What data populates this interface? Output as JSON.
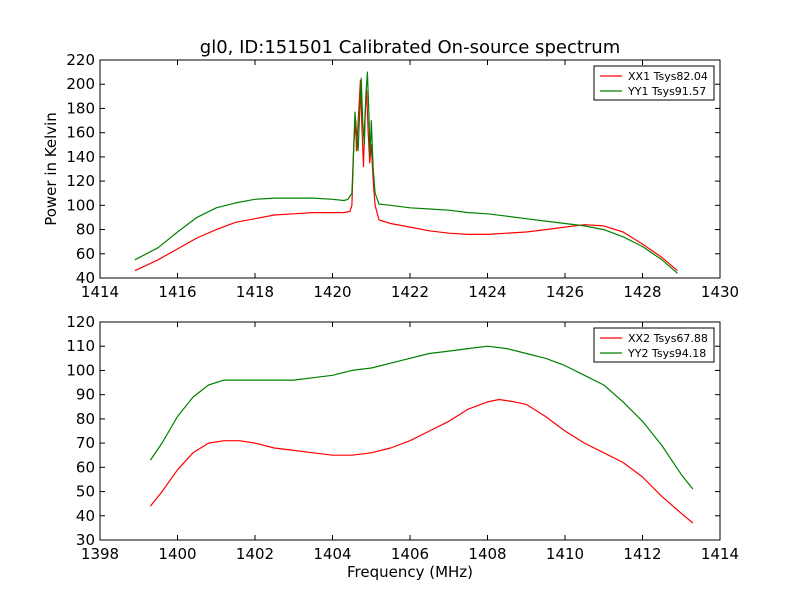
{
  "chart_data": [
    {
      "type": "line",
      "title": "gl0, ID:151501 Calibrated On-source spectrum",
      "xlabel": "",
      "ylabel": "Power in Kelvin",
      "xlim": [
        1414,
        1430
      ],
      "ylim": [
        40,
        220
      ],
      "xticks": [
        1414,
        1416,
        1418,
        1420,
        1422,
        1424,
        1426,
        1428,
        1430
      ],
      "yticks": [
        40,
        60,
        80,
        100,
        120,
        140,
        160,
        180,
        200,
        220
      ],
      "legend_position": "top-right",
      "series": [
        {
          "name": "XX1 Tsys82.04",
          "color": "#ff0000",
          "points": [
            [
              1414.9,
              46
            ],
            [
              1415.5,
              55
            ],
            [
              1416,
              64
            ],
            [
              1416.5,
              73
            ],
            [
              1417,
              80
            ],
            [
              1417.5,
              86
            ],
            [
              1418,
              89
            ],
            [
              1418.5,
              92
            ],
            [
              1419,
              93
            ],
            [
              1419.5,
              94
            ],
            [
              1420,
              94
            ],
            [
              1420.3,
              94
            ],
            [
              1420.45,
              95
            ],
            [
              1420.5,
              100
            ],
            [
              1420.55,
              150
            ],
            [
              1420.6,
              170
            ],
            [
              1420.62,
              145
            ],
            [
              1420.68,
              180
            ],
            [
              1420.72,
              203
            ],
            [
              1420.76,
              165
            ],
            [
              1420.8,
              132
            ],
            [
              1420.84,
              175
            ],
            [
              1420.88,
              195
            ],
            [
              1420.92,
              160
            ],
            [
              1420.96,
              135
            ],
            [
              1421,
              150
            ],
            [
              1421.05,
              120
            ],
            [
              1421.1,
              100
            ],
            [
              1421.2,
              88
            ],
            [
              1421.5,
              85
            ],
            [
              1422,
              82
            ],
            [
              1422.5,
              79
            ],
            [
              1423,
              77
            ],
            [
              1423.5,
              76
            ],
            [
              1424,
              76
            ],
            [
              1424.5,
              77
            ],
            [
              1425,
              78
            ],
            [
              1425.5,
              80
            ],
            [
              1426,
              82
            ],
            [
              1426.5,
              84
            ],
            [
              1427,
              83
            ],
            [
              1427.5,
              78
            ],
            [
              1428,
              68
            ],
            [
              1428.5,
              57
            ],
            [
              1428.9,
              46
            ]
          ]
        },
        {
          "name": "YY1 Tsys91.57",
          "color": "#008000",
          "points": [
            [
              1414.9,
              55
            ],
            [
              1415.5,
              65
            ],
            [
              1416,
              78
            ],
            [
              1416.5,
              90
            ],
            [
              1417,
              98
            ],
            [
              1417.5,
              102
            ],
            [
              1418,
              105
            ],
            [
              1418.5,
              106
            ],
            [
              1419,
              106
            ],
            [
              1419.5,
              106
            ],
            [
              1420,
              105
            ],
            [
              1420.3,
              104
            ],
            [
              1420.4,
              105
            ],
            [
              1420.5,
              110
            ],
            [
              1420.55,
              150
            ],
            [
              1420.58,
              177
            ],
            [
              1420.62,
              160
            ],
            [
              1420.66,
              145
            ],
            [
              1420.7,
              175
            ],
            [
              1420.74,
              205
            ],
            [
              1420.78,
              170
            ],
            [
              1420.82,
              150
            ],
            [
              1420.86,
              190
            ],
            [
              1420.9,
              210
            ],
            [
              1420.94,
              175
            ],
            [
              1420.97,
              140
            ],
            [
              1421,
              170
            ],
            [
              1421.05,
              130
            ],
            [
              1421.1,
              110
            ],
            [
              1421.2,
              101
            ],
            [
              1421.5,
              100
            ],
            [
              1422,
              98
            ],
            [
              1422.5,
              97
            ],
            [
              1423,
              96
            ],
            [
              1423.5,
              94
            ],
            [
              1424,
              93
            ],
            [
              1424.5,
              91
            ],
            [
              1425,
              89
            ],
            [
              1425.5,
              87
            ],
            [
              1426,
              85
            ],
            [
              1426.5,
              83
            ],
            [
              1427,
              80
            ],
            [
              1427.5,
              74
            ],
            [
              1428,
              66
            ],
            [
              1428.5,
              55
            ],
            [
              1428.9,
              44
            ]
          ]
        }
      ]
    },
    {
      "type": "line",
      "title": "",
      "xlabel": "Frequency (MHz)",
      "ylabel": "",
      "xlim": [
        1398,
        1414
      ],
      "ylim": [
        30,
        120
      ],
      "xticks": [
        1398,
        1400,
        1402,
        1404,
        1406,
        1408,
        1410,
        1412,
        1414
      ],
      "yticks": [
        30,
        40,
        50,
        60,
        70,
        80,
        90,
        100,
        110,
        120
      ],
      "legend_position": "top-right",
      "series": [
        {
          "name": "XX2 Tsys67.88",
          "color": "#ff0000",
          "points": [
            [
              1399.3,
              44
            ],
            [
              1399.6,
              50
            ],
            [
              1400,
              59
            ],
            [
              1400.4,
              66
            ],
            [
              1400.8,
              70
            ],
            [
              1401.2,
              71
            ],
            [
              1401.6,
              71
            ],
            [
              1402,
              70
            ],
            [
              1402.5,
              68
            ],
            [
              1403,
              67
            ],
            [
              1403.5,
              66
            ],
            [
              1404,
              65
            ],
            [
              1404.5,
              65
            ],
            [
              1405,
              66
            ],
            [
              1405.5,
              68
            ],
            [
              1406,
              71
            ],
            [
              1406.5,
              75
            ],
            [
              1407,
              79
            ],
            [
              1407.5,
              84
            ],
            [
              1408,
              87
            ],
            [
              1408.3,
              88
            ],
            [
              1408.7,
              87
            ],
            [
              1409,
              86
            ],
            [
              1409.5,
              81
            ],
            [
              1410,
              75
            ],
            [
              1410.5,
              70
            ],
            [
              1411,
              66
            ],
            [
              1411.5,
              62
            ],
            [
              1412,
              56
            ],
            [
              1412.5,
              48
            ],
            [
              1413,
              41
            ],
            [
              1413.3,
              37
            ]
          ]
        },
        {
          "name": "YY2 Tsys94.18",
          "color": "#008000",
          "points": [
            [
              1399.3,
              63
            ],
            [
              1399.6,
              70
            ],
            [
              1400,
              81
            ],
            [
              1400.4,
              89
            ],
            [
              1400.8,
              94
            ],
            [
              1401.2,
              96
            ],
            [
              1401.6,
              96
            ],
            [
              1402,
              96
            ],
            [
              1402.5,
              96
            ],
            [
              1403,
              96
            ],
            [
              1403.5,
              97
            ],
            [
              1404,
              98
            ],
            [
              1404.5,
              100
            ],
            [
              1405,
              101
            ],
            [
              1405.5,
              103
            ],
            [
              1406,
              105
            ],
            [
              1406.5,
              107
            ],
            [
              1407,
              108
            ],
            [
              1407.5,
              109
            ],
            [
              1408,
              110
            ],
            [
              1408.5,
              109
            ],
            [
              1409,
              107
            ],
            [
              1409.5,
              105
            ],
            [
              1410,
              102
            ],
            [
              1410.5,
              98
            ],
            [
              1411,
              94
            ],
            [
              1411.5,
              87
            ],
            [
              1412,
              79
            ],
            [
              1412.5,
              69
            ],
            [
              1413,
              57
            ],
            [
              1413.3,
              51
            ]
          ]
        }
      ]
    }
  ]
}
